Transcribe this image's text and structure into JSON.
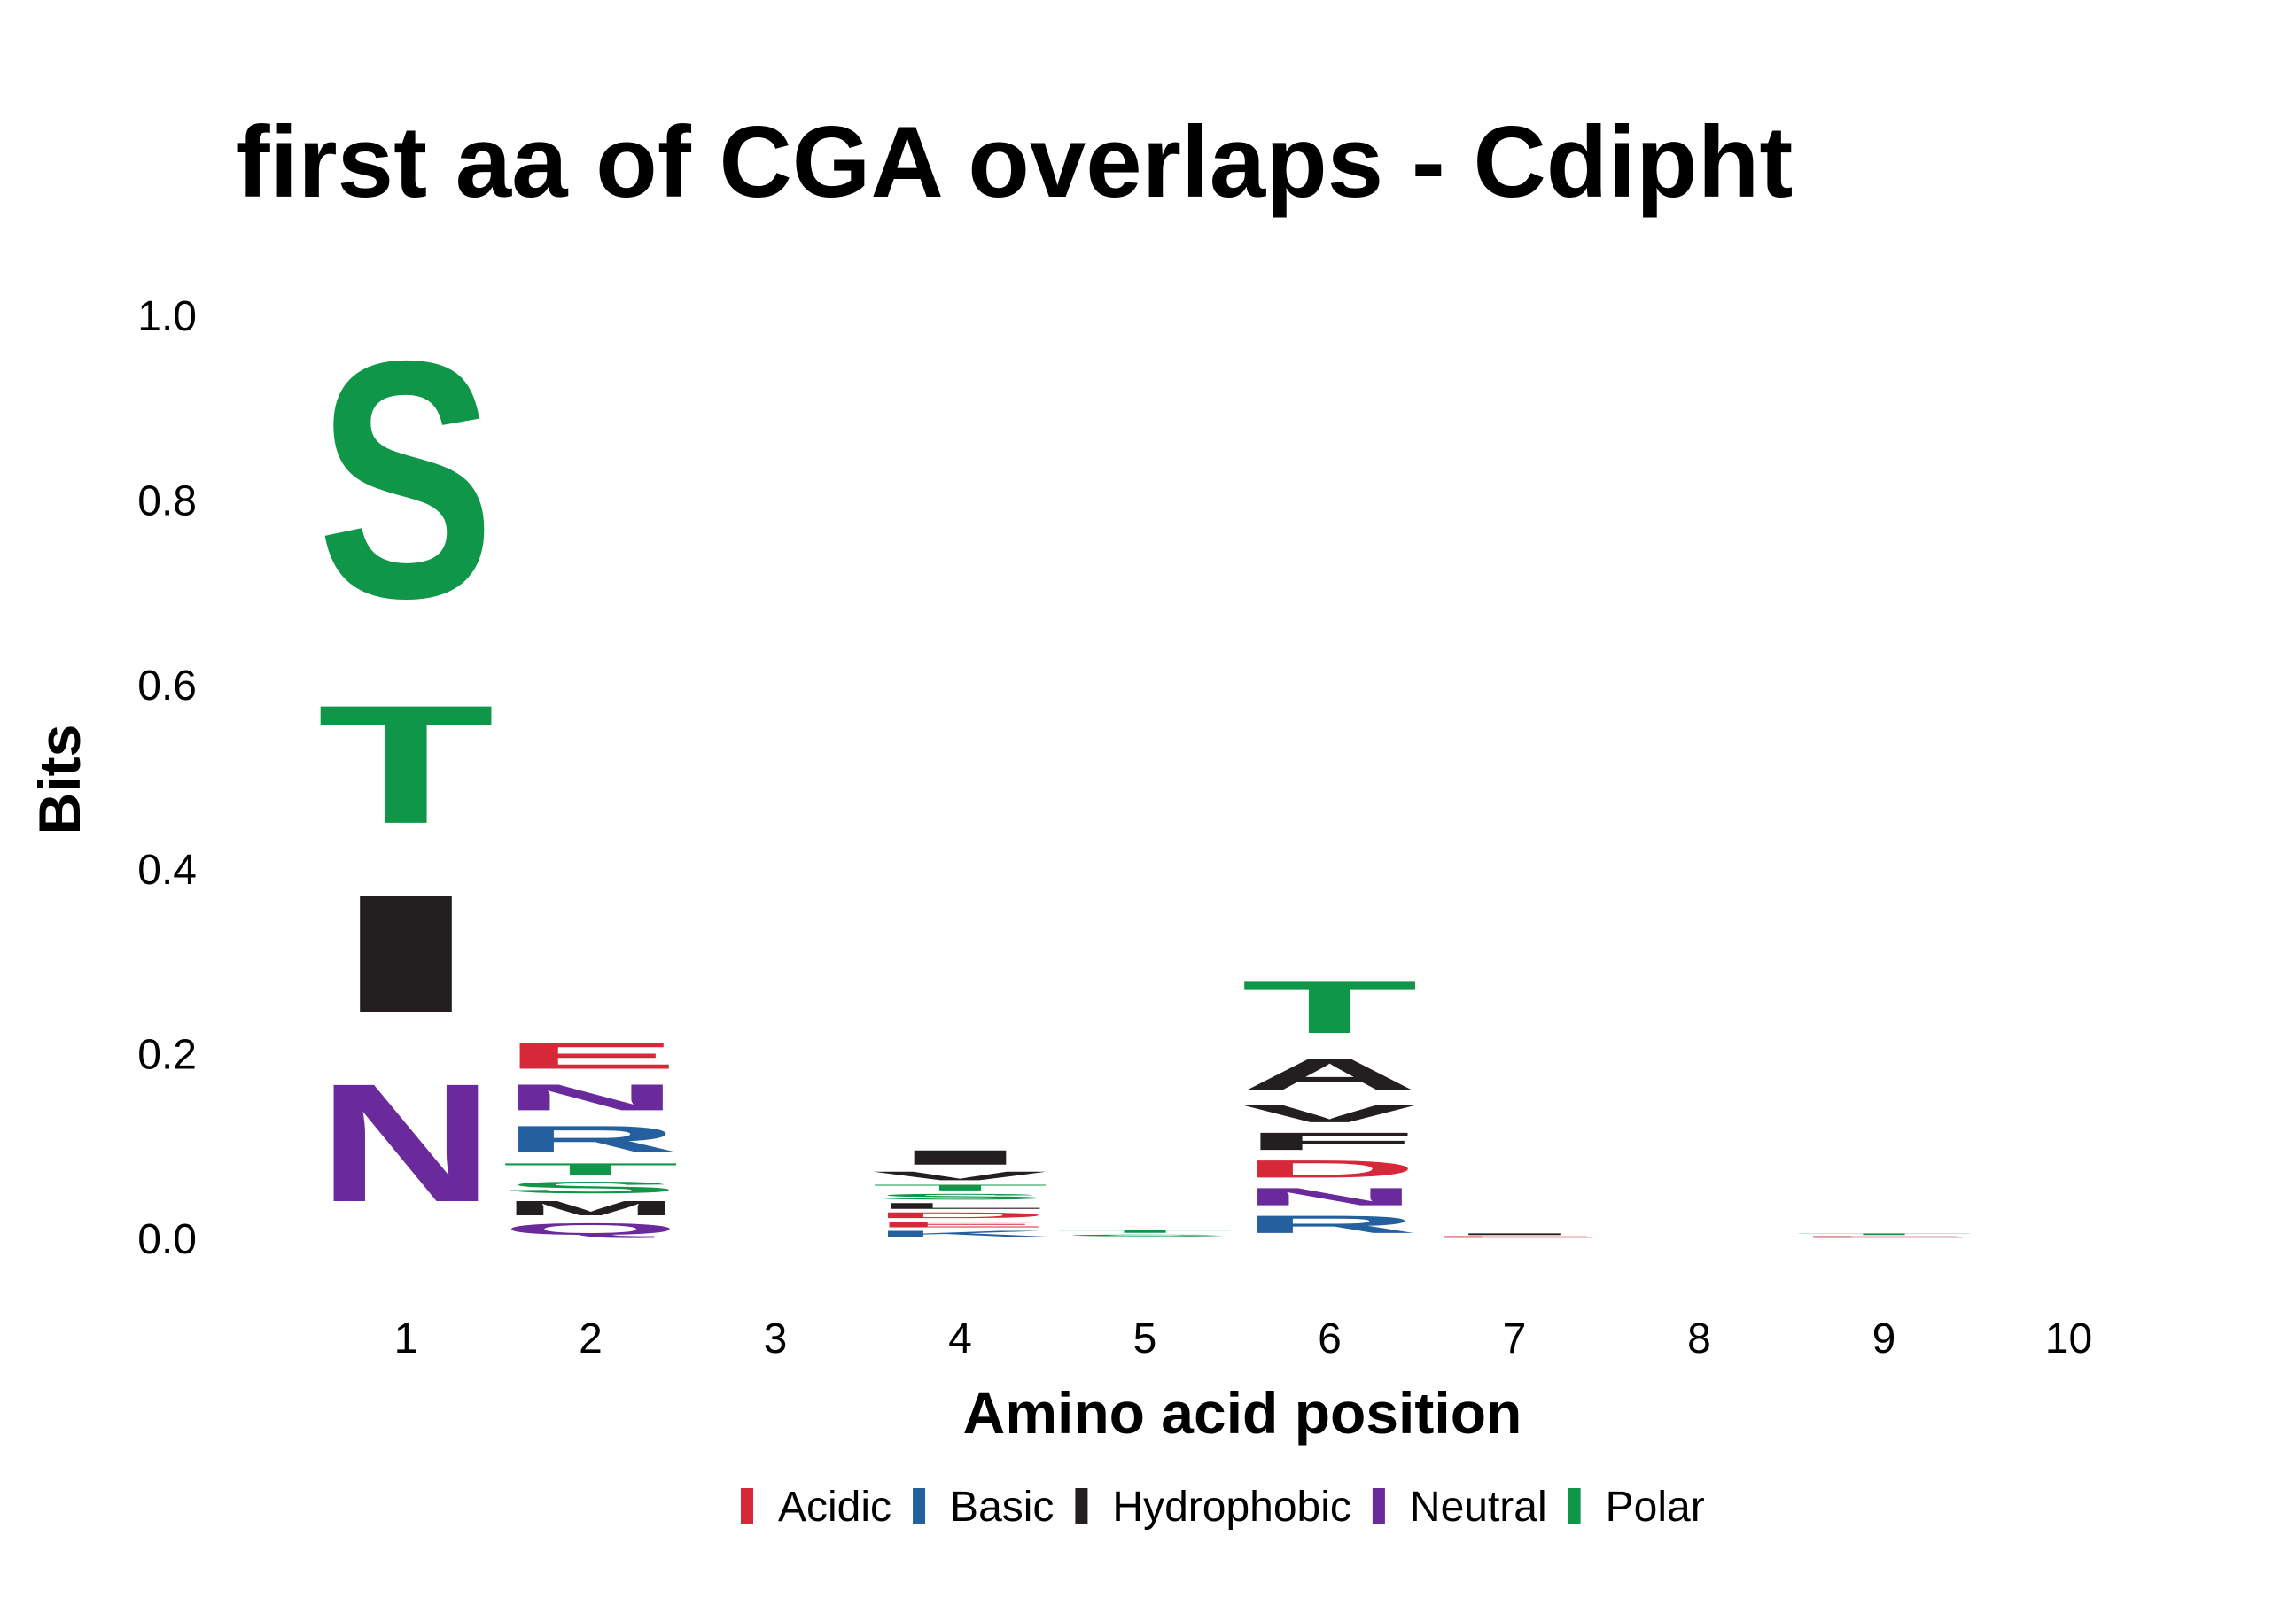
{
  "chart_data": {
    "type": "sequence-logo",
    "title": "first aa of CGA overlaps - Cdipht",
    "xlabel": "Amino acid position",
    "ylabel": "Bits",
    "ylim": [
      0,
      1.0
    ],
    "y_ticks": [
      "0.0",
      "0.2",
      "0.4",
      "0.6",
      "0.8",
      "1.0"
    ],
    "y_tick_values": [
      0.0,
      0.2,
      0.4,
      0.6,
      0.8,
      1.0
    ],
    "x_ticks": [
      "1",
      "2",
      "3",
      "4",
      "5",
      "6",
      "7",
      "8",
      "9",
      "10"
    ],
    "grid": false,
    "legend_position": "bottom",
    "groups": {
      "Acidic": "#d62839",
      "Basic": "#23609d",
      "Hydrophobic": "#231f20",
      "Neutral": "#6a2a9c",
      "Polar": "#109648"
    },
    "legend": [
      {
        "name": "Acidic",
        "color": "#d62839"
      },
      {
        "name": "Basic",
        "color": "#23609d"
      },
      {
        "name": "Hydrophobic",
        "color": "#231f20"
      },
      {
        "name": "Neutral",
        "color": "#6a2a9c"
      },
      {
        "name": "Polar",
        "color": "#109648"
      }
    ],
    "positions": [
      {
        "position": 1,
        "letters": [
          {
            "aa": "N",
            "group": "Neutral",
            "bits": 0.205
          },
          {
            "aa": "I",
            "group": "Hydrophobic",
            "bits": 0.205
          },
          {
            "aa": "T",
            "group": "Polar",
            "bits": 0.205
          },
          {
            "aa": "S",
            "group": "Polar",
            "bits": 0.41
          }
        ]
      },
      {
        "position": 2,
        "letters": [
          {
            "aa": "Q",
            "group": "Neutral",
            "bits": 0.02
          },
          {
            "aa": "M",
            "group": "Hydrophobic",
            "bits": 0.025
          },
          {
            "aa": "S",
            "group": "Polar",
            "bits": 0.02
          },
          {
            "aa": "T",
            "group": "Polar",
            "bits": 0.02
          },
          {
            "aa": "R",
            "group": "Basic",
            "bits": 0.045
          },
          {
            "aa": "N",
            "group": "Neutral",
            "bits": 0.045
          },
          {
            "aa": "E",
            "group": "Acidic",
            "bits": 0.045
          }
        ]
      },
      {
        "position": 3,
        "letters": []
      },
      {
        "position": 4,
        "letters": [
          {
            "aa": "K",
            "group": "Basic",
            "bits": 0.01
          },
          {
            "aa": "E",
            "group": "Acidic",
            "bits": 0.01
          },
          {
            "aa": "D",
            "group": "Acidic",
            "bits": 0.01
          },
          {
            "aa": "L",
            "group": "Hydrophobic",
            "bits": 0.01
          },
          {
            "aa": "S",
            "group": "Polar",
            "bits": 0.01
          },
          {
            "aa": "T",
            "group": "Polar",
            "bits": 0.01
          },
          {
            "aa": "V",
            "group": "Hydrophobic",
            "bits": 0.015
          },
          {
            "aa": "I",
            "group": "Hydrophobic",
            "bits": 0.025
          }
        ]
      },
      {
        "position": 5,
        "letters": [
          {
            "aa": "S",
            "group": "Polar",
            "bits": 0.005
          },
          {
            "aa": "T",
            "group": "Polar",
            "bits": 0.005
          }
        ]
      },
      {
        "position": 6,
        "letters": [
          {
            "aa": "R",
            "group": "Basic",
            "bits": 0.03
          },
          {
            "aa": "N",
            "group": "Neutral",
            "bits": 0.03
          },
          {
            "aa": "D",
            "group": "Acidic",
            "bits": 0.03
          },
          {
            "aa": "F",
            "group": "Hydrophobic",
            "bits": 0.03
          },
          {
            "aa": "V",
            "group": "Hydrophobic",
            "bits": 0.03
          },
          {
            "aa": "A",
            "group": "Hydrophobic",
            "bits": 0.055
          },
          {
            "aa": "T",
            "group": "Polar",
            "bits": 0.09
          }
        ]
      },
      {
        "position": 7,
        "letters": [
          {
            "aa": "E",
            "group": "Acidic",
            "bits": 0.003
          },
          {
            "aa": "I",
            "group": "Hydrophobic",
            "bits": 0.003
          }
        ]
      },
      {
        "position": 8,
        "letters": []
      },
      {
        "position": 9,
        "letters": [
          {
            "aa": "E",
            "group": "Acidic",
            "bits": 0.003
          },
          {
            "aa": "T",
            "group": "Polar",
            "bits": 0.003
          }
        ]
      },
      {
        "position": 10,
        "letters": []
      }
    ]
  }
}
